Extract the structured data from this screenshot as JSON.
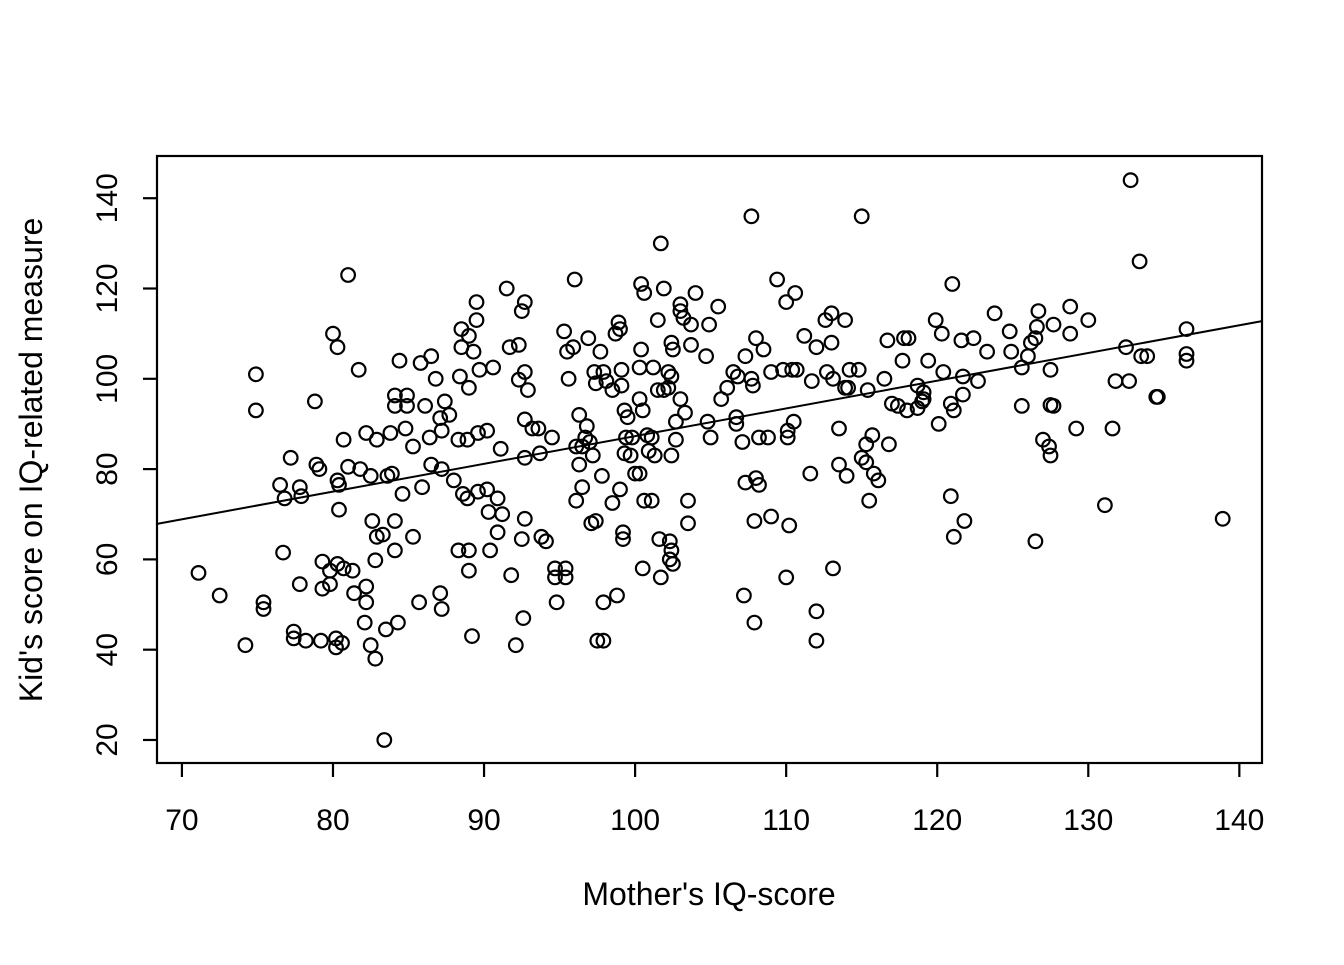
{
  "figure": {
    "background": "#ffffff",
    "foreground": "#000000"
  },
  "chart_data": {
    "type": "scatter",
    "title": "",
    "xlabel": "Mother's IQ-score",
    "ylabel": "Kid's score on IQ-related measure",
    "x_ticks": [
      70,
      80,
      90,
      100,
      110,
      120,
      130,
      140
    ],
    "y_ticks": [
      20,
      40,
      60,
      80,
      100,
      120,
      140
    ],
    "xlim": [
      68.35,
      141.5
    ],
    "ylim": [
      14.9,
      149.35
    ],
    "grid": false,
    "legend": "none",
    "marker": {
      "shape": "open-circle",
      "radius_px": 6.8,
      "stroke_px": 2.2,
      "color": "#000000"
    },
    "regression_line": {
      "intercept": 25.9,
      "slope": 0.614,
      "x_start": 68.35,
      "x_end": 141.5,
      "color": "#000000"
    },
    "points": [
      [
        81,
        123
      ],
      [
        91.5,
        120
      ],
      [
        89.5,
        117
      ],
      [
        92.5,
        115
      ],
      [
        89.5,
        113
      ],
      [
        88.5,
        111
      ],
      [
        89,
        109.5
      ],
      [
        88.5,
        107
      ],
      [
        89.3,
        106
      ],
      [
        91.7,
        107
      ],
      [
        92.3,
        107.5
      ],
      [
        80,
        110
      ],
      [
        80.3,
        107
      ],
      [
        107.7,
        136
      ],
      [
        115,
        136
      ],
      [
        101.7,
        130
      ],
      [
        96,
        122
      ],
      [
        100.4,
        121
      ],
      [
        101.9,
        120
      ],
      [
        100.6,
        119
      ],
      [
        104,
        119
      ],
      [
        103,
        116.5
      ],
      [
        105.5,
        116
      ],
      [
        103,
        115
      ],
      [
        103.2,
        113.5
      ],
      [
        109.4,
        122
      ],
      [
        110.6,
        119
      ],
      [
        110,
        117
      ],
      [
        92.7,
        117
      ],
      [
        113,
        114.5
      ],
      [
        112.6,
        113
      ],
      [
        113.9,
        113
      ],
      [
        98.9,
        112.5
      ],
      [
        99,
        111
      ],
      [
        98.7,
        110
      ],
      [
        101.5,
        113
      ],
      [
        103.7,
        112
      ],
      [
        104.9,
        112
      ],
      [
        95.3,
        110.5
      ],
      [
        96.9,
        109
      ],
      [
        95.9,
        107
      ],
      [
        95.5,
        106
      ],
      [
        97.7,
        106
      ],
      [
        100.4,
        106.5
      ],
      [
        102.4,
        108
      ],
      [
        102.5,
        106.5
      ],
      [
        103.7,
        107.5
      ],
      [
        104.7,
        105
      ],
      [
        107.3,
        105
      ],
      [
        108,
        109
      ],
      [
        108.5,
        106.5
      ],
      [
        111.2,
        109.5
      ],
      [
        112,
        107
      ],
      [
        113,
        108
      ],
      [
        116.7,
        108.5
      ],
      [
        132.8,
        144
      ],
      [
        133.4,
        126
      ],
      [
        121,
        121
      ],
      [
        119.9,
        113
      ],
      [
        120.3,
        110
      ],
      [
        117.8,
        109
      ],
      [
        118.1,
        109
      ],
      [
        123.8,
        114.5
      ],
      [
        126.7,
        115
      ],
      [
        128.8,
        116
      ],
      [
        130,
        113
      ],
      [
        127.7,
        112
      ],
      [
        126.6,
        111.5
      ],
      [
        124.8,
        110.5
      ],
      [
        126.5,
        109
      ],
      [
        128.8,
        110
      ],
      [
        121.6,
        108.5
      ],
      [
        122.4,
        109
      ],
      [
        126.2,
        108
      ],
      [
        136.5,
        111
      ],
      [
        136.5,
        105.5
      ],
      [
        136.5,
        104
      ],
      [
        132.5,
        107
      ],
      [
        133.5,
        105
      ],
      [
        133.9,
        105
      ],
      [
        123.3,
        106
      ],
      [
        124.9,
        106
      ],
      [
        126,
        105
      ],
      [
        134.5,
        96
      ],
      [
        74.9,
        101
      ],
      [
        81.7,
        102
      ],
      [
        84.4,
        104
      ],
      [
        85.8,
        103.5
      ],
      [
        86.5,
        105
      ],
      [
        86.8,
        100
      ],
      [
        88.4,
        100.5
      ],
      [
        89.7,
        102
      ],
      [
        90.6,
        102.5
      ],
      [
        92.3,
        99.8
      ],
      [
        74.9,
        93
      ],
      [
        78.8,
        95
      ],
      [
        84.1,
        96.3
      ],
      [
        84.9,
        96.3
      ],
      [
        84.1,
        94
      ],
      [
        84.9,
        94
      ],
      [
        86.1,
        94
      ],
      [
        87.4,
        95
      ],
      [
        87.1,
        91.3
      ],
      [
        87.7,
        92
      ],
      [
        89,
        98
      ],
      [
        80.7,
        86.5
      ],
      [
        82.2,
        88
      ],
      [
        82.9,
        86.5
      ],
      [
        83.8,
        88
      ],
      [
        84.8,
        89
      ],
      [
        85.3,
        85
      ],
      [
        86.4,
        87
      ],
      [
        87.2,
        88.5
      ],
      [
        88.3,
        86.5
      ],
      [
        88.9,
        86.5
      ],
      [
        89.6,
        88
      ],
      [
        90.2,
        88.5
      ],
      [
        91.1,
        84.5
      ],
      [
        77.2,
        82.5
      ],
      [
        78.9,
        81
      ],
      [
        79.1,
        80
      ],
      [
        81,
        80.5
      ],
      [
        81.8,
        80
      ],
      [
        82.5,
        78.5
      ],
      [
        83.6,
        78.5
      ],
      [
        83.9,
        79
      ],
      [
        80.3,
        77.5
      ],
      [
        80.4,
        76.5
      ],
      [
        86.5,
        81
      ],
      [
        87.2,
        80
      ],
      [
        88,
        77.5
      ],
      [
        85.9,
        76
      ],
      [
        84.6,
        74.5
      ],
      [
        76.5,
        76.5
      ],
      [
        76.8,
        73.5
      ],
      [
        77.8,
        76
      ],
      [
        77.9,
        74
      ],
      [
        80.4,
        71
      ],
      [
        88.6,
        74.5
      ],
      [
        88.9,
        73.5
      ],
      [
        89.6,
        75
      ],
      [
        90.2,
        75.5
      ],
      [
        90.9,
        73.5
      ],
      [
        90.3,
        70.5
      ],
      [
        91.2,
        70
      ],
      [
        90.9,
        66
      ],
      [
        82.6,
        68.5
      ],
      [
        83.3,
        65.5
      ],
      [
        82.9,
        65
      ],
      [
        84.1,
        68.5
      ],
      [
        85.3,
        65
      ],
      [
        84.1,
        62
      ],
      [
        76.7,
        61.5
      ],
      [
        88.3,
        62
      ],
      [
        89,
        62
      ],
      [
        90.4,
        62
      ],
      [
        92.5,
        64.5
      ],
      [
        92.7,
        101.5
      ],
      [
        92.9,
        97.5
      ],
      [
        95.6,
        100
      ],
      [
        97.3,
        101.5
      ],
      [
        97.9,
        101.5
      ],
      [
        97.4,
        99
      ],
      [
        98.1,
        99.5
      ],
      [
        99.1,
        102
      ],
      [
        100.3,
        102.5
      ],
      [
        101.2,
        102.5
      ],
      [
        99.1,
        98.5
      ],
      [
        98.5,
        97.5
      ],
      [
        102.2,
        101.5
      ],
      [
        102.4,
        100.5
      ],
      [
        101.5,
        97.5
      ],
      [
        101.9,
        97.5
      ],
      [
        102.2,
        98
      ],
      [
        103,
        95.5
      ],
      [
        103.3,
        92.5
      ],
      [
        100.3,
        95.5
      ],
      [
        100.5,
        93
      ],
      [
        99.3,
        93
      ],
      [
        99.5,
        91.5
      ],
      [
        105.7,
        95.5
      ],
      [
        106.1,
        98
      ],
      [
        106.8,
        100.5
      ],
      [
        106.5,
        101.5
      ],
      [
        107.7,
        100
      ],
      [
        107.8,
        98.5
      ],
      [
        109,
        101.5
      ],
      [
        109.8,
        102
      ],
      [
        110.4,
        102
      ],
      [
        110.7,
        102
      ],
      [
        111.7,
        99.5
      ],
      [
        112.7,
        101.5
      ],
      [
        113.1,
        100
      ],
      [
        113.9,
        98
      ],
      [
        114.1,
        98
      ],
      [
        115.4,
        97.5
      ],
      [
        116.5,
        100
      ],
      [
        114.2,
        102
      ],
      [
        114.8,
        102
      ],
      [
        117,
        94.5
      ],
      [
        93.2,
        89
      ],
      [
        93.6,
        89
      ],
      [
        92.7,
        91
      ],
      [
        94.5,
        87
      ],
      [
        96.3,
        92
      ],
      [
        96.8,
        89.5
      ],
      [
        96.7,
        87
      ],
      [
        97,
        86
      ],
      [
        97.2,
        83
      ],
      [
        96.3,
        81
      ],
      [
        99.4,
        87
      ],
      [
        99.8,
        87
      ],
      [
        99.3,
        83.5
      ],
      [
        99.7,
        83
      ],
      [
        100.8,
        87.5
      ],
      [
        101.1,
        87
      ],
      [
        100.9,
        84
      ],
      [
        101.3,
        83
      ],
      [
        102.7,
        90.5
      ],
      [
        102.7,
        86.5
      ],
      [
        102.4,
        83
      ],
      [
        104.8,
        90.5
      ],
      [
        105,
        87
      ],
      [
        106.7,
        91.5
      ],
      [
        106.7,
        90
      ],
      [
        107.1,
        86
      ],
      [
        108.2,
        87
      ],
      [
        108.8,
        87
      ],
      [
        110.1,
        88.5
      ],
      [
        110.1,
        87
      ],
      [
        110.5,
        90.5
      ],
      [
        113.5,
        89
      ],
      [
        115.7,
        87.5
      ],
      [
        115.3,
        85.5
      ],
      [
        115,
        82.5
      ],
      [
        115.3,
        81.5
      ],
      [
        115.8,
        79
      ],
      [
        116.1,
        77.5
      ],
      [
        116.8,
        85.5
      ],
      [
        92.7,
        82.5
      ],
      [
        93.7,
        83.5
      ],
      [
        96.1,
        85
      ],
      [
        96.5,
        85
      ],
      [
        97.8,
        78.5
      ],
      [
        100,
        79
      ],
      [
        100.3,
        79
      ],
      [
        99,
        75.5
      ],
      [
        98.5,
        72.5
      ],
      [
        96.5,
        76
      ],
      [
        96.1,
        73
      ],
      [
        100.6,
        73
      ],
      [
        101.1,
        73
      ],
      [
        103.5,
        73
      ],
      [
        103.5,
        68
      ],
      [
        97.1,
        68
      ],
      [
        97.4,
        68.5
      ],
      [
        99.2,
        66
      ],
      [
        99.2,
        64.5
      ],
      [
        101.6,
        64.5
      ],
      [
        102.3,
        64
      ],
      [
        102.4,
        62
      ],
      [
        107.3,
        77
      ],
      [
        108,
        78
      ],
      [
        108.2,
        76.5
      ],
      [
        111.6,
        79
      ],
      [
        113.5,
        81
      ],
      [
        114,
        78.5
      ],
      [
        115.5,
        73
      ],
      [
        107.9,
        68.5
      ],
      [
        109,
        69.5
      ],
      [
        110.2,
        67.5
      ],
      [
        93.8,
        65
      ],
      [
        94.1,
        64
      ],
      [
        92.7,
        69
      ],
      [
        117.7,
        104
      ],
      [
        119.4,
        104
      ],
      [
        120.4,
        101.5
      ],
      [
        121.7,
        100.5
      ],
      [
        122.7,
        99.5
      ],
      [
        118.7,
        98.5
      ],
      [
        119.1,
        97
      ],
      [
        119.1,
        95.5
      ],
      [
        119,
        95
      ],
      [
        117.4,
        94
      ],
      [
        118,
        93
      ],
      [
        118.7,
        93.5
      ],
      [
        120.9,
        94.5
      ],
      [
        121.1,
        93
      ],
      [
        121.7,
        96.5
      ],
      [
        120.1,
        90
      ],
      [
        125.6,
        94
      ],
      [
        125.6,
        102.5
      ],
      [
        127.5,
        102
      ],
      [
        127.5,
        94.2
      ],
      [
        127.7,
        94
      ],
      [
        129.2,
        89
      ],
      [
        131.6,
        89
      ],
      [
        127,
        86.5
      ],
      [
        127.4,
        85
      ],
      [
        127.5,
        83
      ],
      [
        131.8,
        99.5
      ],
      [
        132.7,
        99.5
      ],
      [
        134.6,
        96
      ],
      [
        120.9,
        74
      ],
      [
        121.8,
        68.5
      ],
      [
        121.1,
        65
      ],
      [
        131.1,
        72
      ],
      [
        126.5,
        64
      ],
      [
        138.9,
        69
      ],
      [
        71.1,
        57
      ],
      [
        72.5,
        52
      ],
      [
        75.4,
        50.5
      ],
      [
        75.4,
        49
      ],
      [
        74.2,
        41
      ],
      [
        77.8,
        54.5
      ],
      [
        79.3,
        59.5
      ],
      [
        79.8,
        57.5
      ],
      [
        80.3,
        59
      ],
      [
        80.7,
        58
      ],
      [
        81.3,
        57.5
      ],
      [
        79.8,
        54.5
      ],
      [
        79.3,
        53.5
      ],
      [
        81.4,
        52.5
      ],
      [
        82.2,
        54
      ],
      [
        82.2,
        50.5
      ],
      [
        82.8,
        59.8
      ],
      [
        82.1,
        46
      ],
      [
        83.5,
        44.5
      ],
      [
        84.3,
        46
      ],
      [
        77.4,
        44
      ],
      [
        77.4,
        42.5
      ],
      [
        78.2,
        42
      ],
      [
        79.2,
        42
      ],
      [
        80.2,
        42.5
      ],
      [
        80.2,
        40.5
      ],
      [
        80.6,
        41.5
      ],
      [
        82.5,
        41
      ],
      [
        82.8,
        38
      ],
      [
        85.7,
        50.5
      ],
      [
        87.1,
        52.5
      ],
      [
        87.2,
        49
      ],
      [
        89,
        57.5
      ],
      [
        89.2,
        43
      ],
      [
        91.8,
        56.5
      ],
      [
        92.1,
        41
      ],
      [
        92.6,
        47
      ],
      [
        83.4,
        20
      ],
      [
        94.7,
        58
      ],
      [
        95.4,
        58
      ],
      [
        94.7,
        56
      ],
      [
        95.4,
        56
      ],
      [
        100.5,
        58
      ],
      [
        101.7,
        56
      ],
      [
        102.3,
        60
      ],
      [
        102.5,
        59
      ],
      [
        94.8,
        50.5
      ],
      [
        97.9,
        50.5
      ],
      [
        98.8,
        52
      ],
      [
        97.5,
        42
      ],
      [
        97.9,
        42
      ],
      [
        107.2,
        52
      ],
      [
        107.9,
        46
      ],
      [
        110,
        56
      ],
      [
        113.1,
        58
      ],
      [
        112,
        48.5
      ],
      [
        112,
        42
      ]
    ]
  }
}
